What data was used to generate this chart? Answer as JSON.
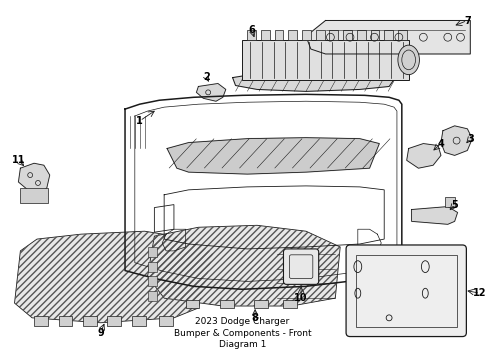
{
  "title": "2023 Dodge Charger\nBumper & Components - Front\nDiagram 1",
  "title_fontsize": 6.5,
  "background_color": "#ffffff",
  "line_color": "#1a1a1a",
  "label_color": "#000000",
  "label_fontsize": 7,
  "fig_w": 4.9,
  "fig_h": 3.6,
  "dpi": 100
}
